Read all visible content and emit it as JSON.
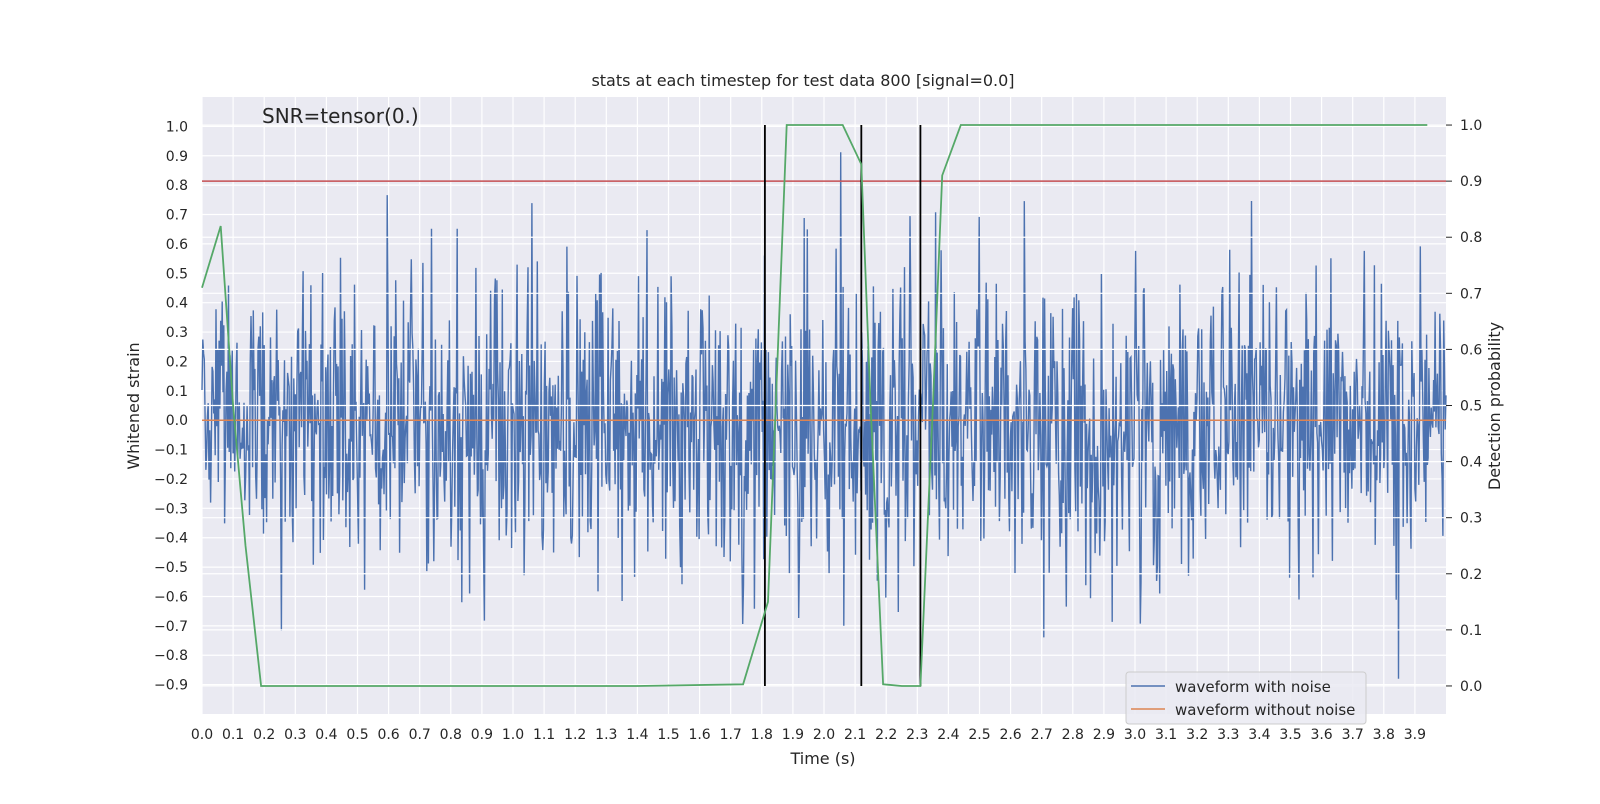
{
  "chart_data": {
    "type": "line",
    "title": "stats at each timestep for test data 800 [signal=0.0]",
    "xlabel": "Time (s)",
    "ylabel_left": "Whitened strain",
    "ylabel_right": "Detection probability",
    "xlim": [
      0.0,
      4.0
    ],
    "ylim_left": [
      -1.0,
      1.1
    ],
    "ylim_right": [
      -0.05,
      1.05
    ],
    "x_ticks": [
      "0.0",
      "0.1",
      "0.2",
      "0.3",
      "0.4",
      "0.5",
      "0.6",
      "0.7",
      "0.8",
      "0.9",
      "1.0",
      "1.1",
      "1.2",
      "1.3",
      "1.4",
      "1.5",
      "1.6",
      "1.7",
      "1.8",
      "1.9",
      "2.0",
      "2.1",
      "2.2",
      "2.3",
      "2.4",
      "2.5",
      "2.6",
      "2.7",
      "2.8",
      "2.9",
      "3.0",
      "3.1",
      "3.2",
      "3.3",
      "3.4",
      "3.5",
      "3.6",
      "3.7",
      "3.8",
      "3.9"
    ],
    "y_left_ticks": [
      "1.0",
      "0.9",
      "0.8",
      "0.7",
      "0.6",
      "0.5",
      "0.4",
      "0.3",
      "0.2",
      "0.1",
      "0.0",
      "−0.1",
      "−0.2",
      "−0.3",
      "−0.4",
      "−0.5",
      "−0.6",
      "−0.7",
      "−0.8",
      "−0.9"
    ],
    "y_right_ticks": [
      "1.0",
      "0.9",
      "0.8",
      "0.7",
      "0.6",
      "0.5",
      "0.4",
      "0.3",
      "0.2",
      "0.1",
      "0.0"
    ],
    "annotation": "SNR=tensor(0.)",
    "grid": true,
    "legend_position": "bottom-right",
    "series": [
      {
        "name": "waveform with noise",
        "axis": "left",
        "color": "#4c72b0",
        "style": "dense noise",
        "n_samples": 1600,
        "approx_range": [
          -0.88,
          1.0
        ]
      },
      {
        "name": "waveform without noise",
        "axis": "left",
        "color": "#dd8452",
        "x": [
          0.0,
          4.0
        ],
        "y": [
          0.0,
          0.0
        ]
      },
      {
        "axis": "right",
        "color": "#55a868",
        "x": [
          0.0,
          0.06,
          0.1,
          0.14,
          0.19,
          0.25,
          1.4,
          1.74,
          1.82,
          1.88,
          1.94,
          2.06,
          2.12,
          2.15,
          2.19,
          2.25,
          2.31,
          2.35,
          2.38,
          2.44,
          3.94
        ],
        "y": [
          0.71,
          0.82,
          0.5,
          0.25,
          0.0,
          0.0,
          0.0,
          0.003,
          0.15,
          1.0,
          1.0,
          1.0,
          0.93,
          0.5,
          0.003,
          0.0,
          0.0,
          0.5,
          0.91,
          1.0,
          1.0
        ]
      },
      {
        "axis": "right",
        "color": "#c44e52",
        "x": [
          0.0,
          4.0
        ],
        "y": [
          0.9,
          0.9
        ]
      }
    ],
    "vertical_lines": {
      "color": "#000000",
      "x": [
        1.81,
        2.12,
        2.31
      ],
      "y_range_right": [
        0.0,
        1.0
      ]
    }
  },
  "legend": {
    "items": [
      {
        "label": "waveform with noise",
        "color": "#4c72b0"
      },
      {
        "label": "waveform without noise",
        "color": "#dd8452"
      }
    ]
  }
}
